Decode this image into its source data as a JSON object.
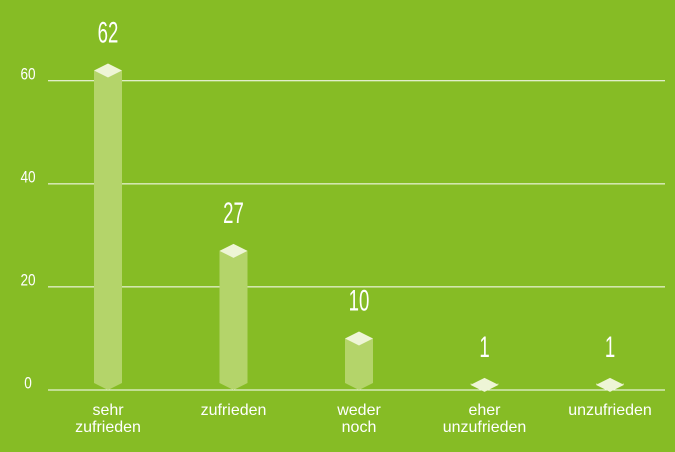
{
  "chart_data": {
    "type": "bar",
    "categories": [
      "sehr zufrieden",
      "zufrieden",
      "weder noch",
      "eher unzufrieden",
      "unzufrieden"
    ],
    "values": [
      62,
      27,
      10,
      1,
      1
    ],
    "color": "#b4d46a",
    "ylim": [
      0,
      65
    ],
    "yticks": [
      0,
      20,
      40,
      60
    ],
    "grid": true
  }
}
